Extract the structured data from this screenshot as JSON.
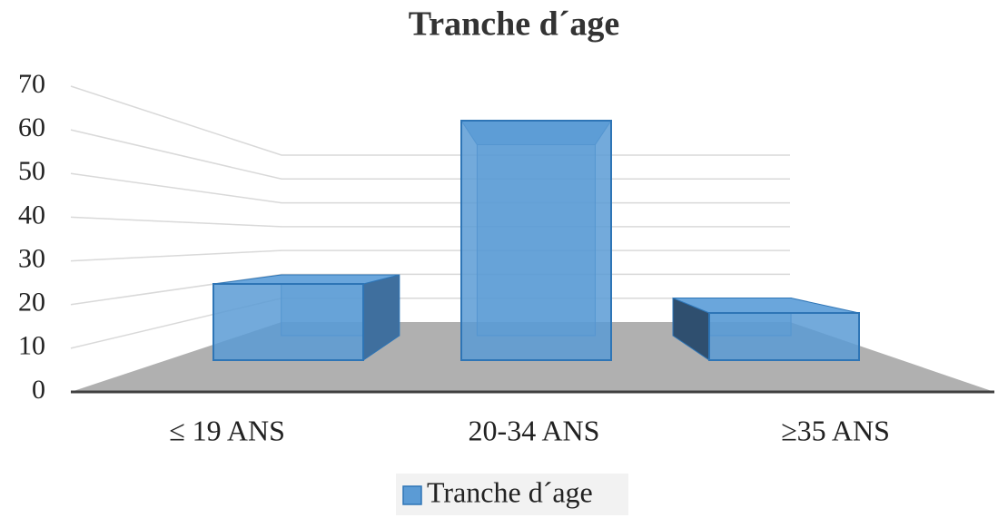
{
  "chart_data": {
    "type": "bar3d",
    "title": "Tranche d´age",
    "categories": [
      "≤ 19 ANS",
      "20-34 ANS",
      "≥35 ANS"
    ],
    "series": [
      {
        "name": "Tranche d´age",
        "color": "#5b9bd5",
        "values": [
          21,
          66,
          13
        ]
      }
    ],
    "ylim": [
      0,
      70
    ],
    "yticks": [
      0,
      10,
      20,
      30,
      40,
      50,
      60,
      70
    ],
    "grid": true,
    "legend": "bottom"
  }
}
